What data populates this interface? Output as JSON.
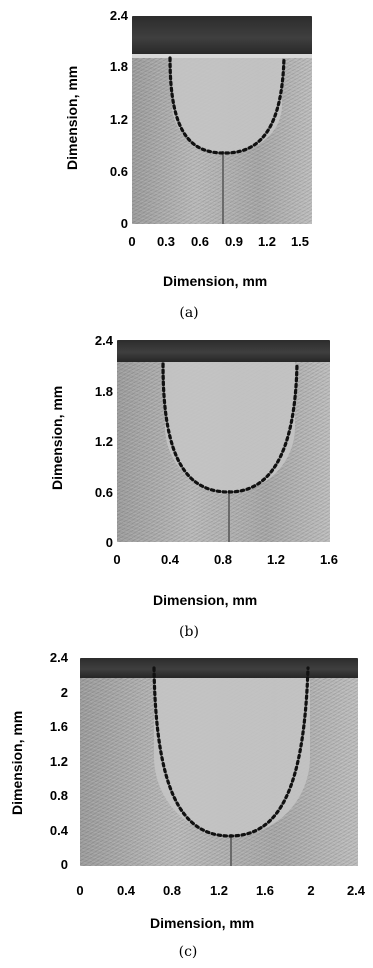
{
  "figures": [
    {
      "caption": "(a)",
      "x_ticks": [
        "0",
        "0.3",
        "0.6",
        "0.9",
        "1.2",
        "1.5"
      ],
      "y_ticks": [
        "2.4",
        "1.8",
        "1.2",
        "0.6",
        "0"
      ],
      "xlabel": "Dimension, mm",
      "ylabel": "Dimension, mm"
    },
    {
      "caption": "(b)",
      "x_ticks": [
        "0",
        "0.4",
        "0.8",
        "1.2",
        "1.6"
      ],
      "y_ticks": [
        "2.4",
        "1.8",
        "1.2",
        "0.6",
        "0"
      ],
      "xlabel": "Dimension, mm",
      "ylabel": "Dimension, mm"
    },
    {
      "caption": "(c)",
      "x_ticks": [
        "0",
        "0.4",
        "0.8",
        "1.2",
        "1.6",
        "2",
        "2.4"
      ],
      "y_ticks": [
        "2.4",
        "2",
        "1.6",
        "1.2",
        "0.8",
        "0.4",
        "0"
      ],
      "xlabel": "Dimension, mm",
      "ylabel": "Dimension, mm"
    }
  ]
}
